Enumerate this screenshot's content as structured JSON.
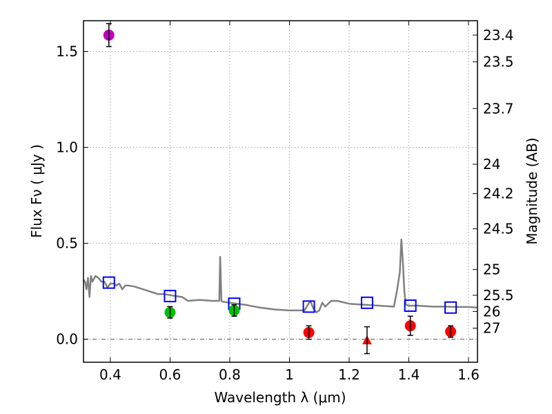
{
  "chart_data": {
    "type": "scatter",
    "xlabel": "Wavelength  λ (μm)",
    "ylabel": "Flux  Fν ( μJy )",
    "ylabel_right": "Magnitude (AB)",
    "xlim": [
      0.31,
      1.63
    ],
    "ylim": [
      -0.12,
      1.66
    ],
    "x_ticks": [
      0.4,
      0.6,
      0.8,
      1.0,
      1.2,
      1.4,
      1.6
    ],
    "x_tick_labels": [
      "0.4",
      "0.6",
      "0.8",
      "1",
      "1.2",
      "1.4",
      "1.6"
    ],
    "y_ticks": [
      0.0,
      0.5,
      1.0,
      1.5
    ],
    "y_tick_labels": [
      "0.0",
      "0.5",
      "1.0",
      "1.5"
    ],
    "grid": true,
    "mag_ticks": [
      {
        "label": "23.4",
        "mag": 23.4
      },
      {
        "label": "23.5",
        "mag": 23.5
      },
      {
        "label": "23.7",
        "mag": 23.7
      },
      {
        "label": "24",
        "mag": 24.0
      },
      {
        "label": "24.2",
        "mag": 24.2
      },
      {
        "label": "24.5",
        "mag": 24.5
      },
      {
        "label": "25",
        "mag": 25.0
      },
      {
        "label": "25.5",
        "mag": 25.5
      },
      {
        "label": "26",
        "mag": 26.0
      },
      {
        "label": "27",
        "mag": 27.0
      }
    ],
    "observed": [
      {
        "x": 0.395,
        "y": 1.585,
        "err": 0.06,
        "color": "#bf00bf",
        "marker": "circle"
      },
      {
        "x": 0.6,
        "y": 0.14,
        "err": 0.03,
        "color": "#00bf00",
        "marker": "circle"
      },
      {
        "x": 0.815,
        "y": 0.15,
        "err": 0.03,
        "color": "#00bf00",
        "marker": "circle"
      },
      {
        "x": 1.065,
        "y": 0.035,
        "err": 0.035,
        "color": "#ff0000",
        "marker": "circle"
      },
      {
        "x": 1.26,
        "y": -0.005,
        "err": 0.07,
        "color": "#ff0000",
        "marker": "triangle"
      },
      {
        "x": 1.405,
        "y": 0.07,
        "err": 0.05,
        "color": "#ff0000",
        "marker": "circle"
      },
      {
        "x": 1.54,
        "y": 0.04,
        "err": 0.03,
        "color": "#ff0000",
        "marker": "circle"
      }
    ],
    "model_photometry": {
      "x": [
        0.395,
        0.6,
        0.815,
        1.065,
        1.26,
        1.405,
        1.54
      ],
      "y": [
        0.295,
        0.225,
        0.185,
        0.17,
        0.19,
        0.175,
        0.165
      ],
      "color": "#0000ff",
      "marker": "square-open"
    },
    "model_spectrum": {
      "color": "#808080",
      "x": [
        0.31,
        0.315,
        0.32,
        0.325,
        0.33,
        0.335,
        0.34,
        0.35,
        0.36,
        0.37,
        0.38,
        0.39,
        0.4,
        0.41,
        0.42,
        0.43,
        0.44,
        0.45,
        0.46,
        0.48,
        0.5,
        0.52,
        0.54,
        0.56,
        0.58,
        0.6,
        0.62,
        0.64,
        0.65,
        0.66,
        0.7,
        0.74,
        0.765,
        0.768,
        0.772,
        0.776,
        0.78,
        0.8,
        0.85,
        0.9,
        0.95,
        1.0,
        1.05,
        1.07,
        1.08,
        1.09,
        1.1,
        1.11,
        1.12,
        1.14,
        1.16,
        1.2,
        1.25,
        1.3,
        1.35,
        1.36,
        1.37,
        1.375,
        1.38,
        1.385,
        1.39,
        1.4,
        1.43,
        1.48,
        1.52,
        1.56,
        1.6,
        1.63
      ],
      "y": [
        0.31,
        0.3,
        0.26,
        0.32,
        0.22,
        0.33,
        0.3,
        0.33,
        0.32,
        0.3,
        0.3,
        0.27,
        0.29,
        0.29,
        0.28,
        0.29,
        0.26,
        0.28,
        0.28,
        0.275,
        0.265,
        0.255,
        0.245,
        0.235,
        0.235,
        0.23,
        0.225,
        0.22,
        0.21,
        0.2,
        0.205,
        0.2,
        0.2,
        0.43,
        0.2,
        0.195,
        0.195,
        0.19,
        0.18,
        0.165,
        0.155,
        0.15,
        0.15,
        0.2,
        0.16,
        0.14,
        0.15,
        0.19,
        0.17,
        0.2,
        0.2,
        0.185,
        0.18,
        0.175,
        0.17,
        0.25,
        0.35,
        0.52,
        0.4,
        0.25,
        0.18,
        0.175,
        0.175,
        0.17,
        0.17,
        0.168,
        0.168,
        0.165
      ]
    }
  }
}
